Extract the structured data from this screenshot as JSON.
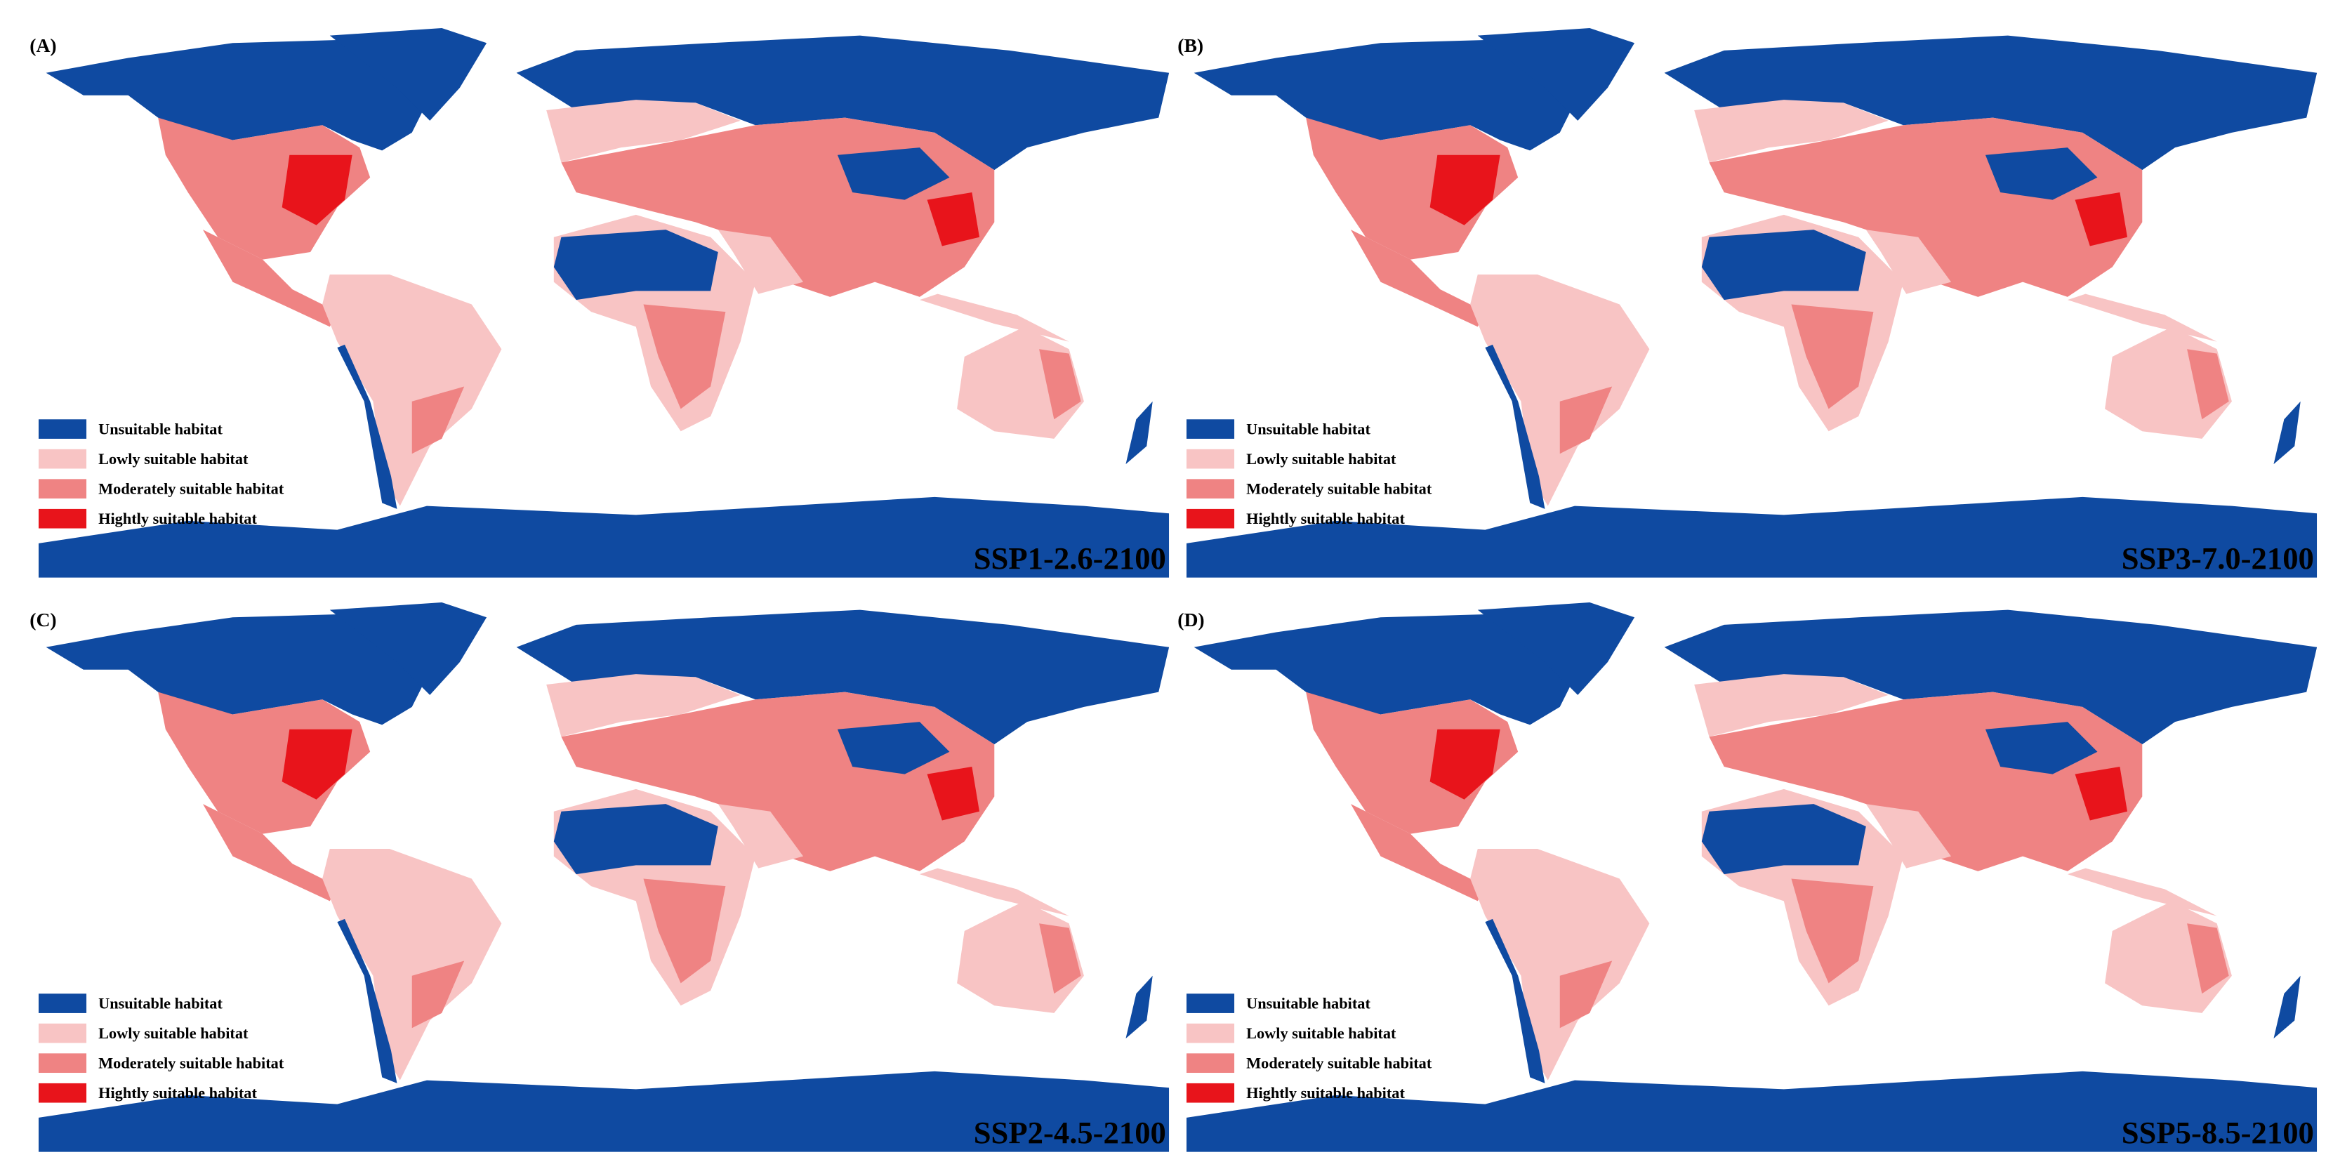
{
  "panels": [
    {
      "label": "(A)",
      "scenario": "SSP1-2.6-2100"
    },
    {
      "label": "(B)",
      "scenario": "SSP3-7.0-2100"
    },
    {
      "label": "(C)",
      "scenario": "SSP2-4.5-2100"
    },
    {
      "label": "(D)",
      "scenario": "SSP5-8.5-2100"
    }
  ],
  "legend": [
    {
      "label": "Unsuitable habitat",
      "color": "#0f4aa1"
    },
    {
      "label": "Lowly suitable habitat",
      "color": "#f8c4c4"
    },
    {
      "label": "Moderately suitable habitat",
      "color": "#ef8383"
    },
    {
      "label": "Hightly suitable habitat",
      "color": "#e8141b"
    }
  ]
}
